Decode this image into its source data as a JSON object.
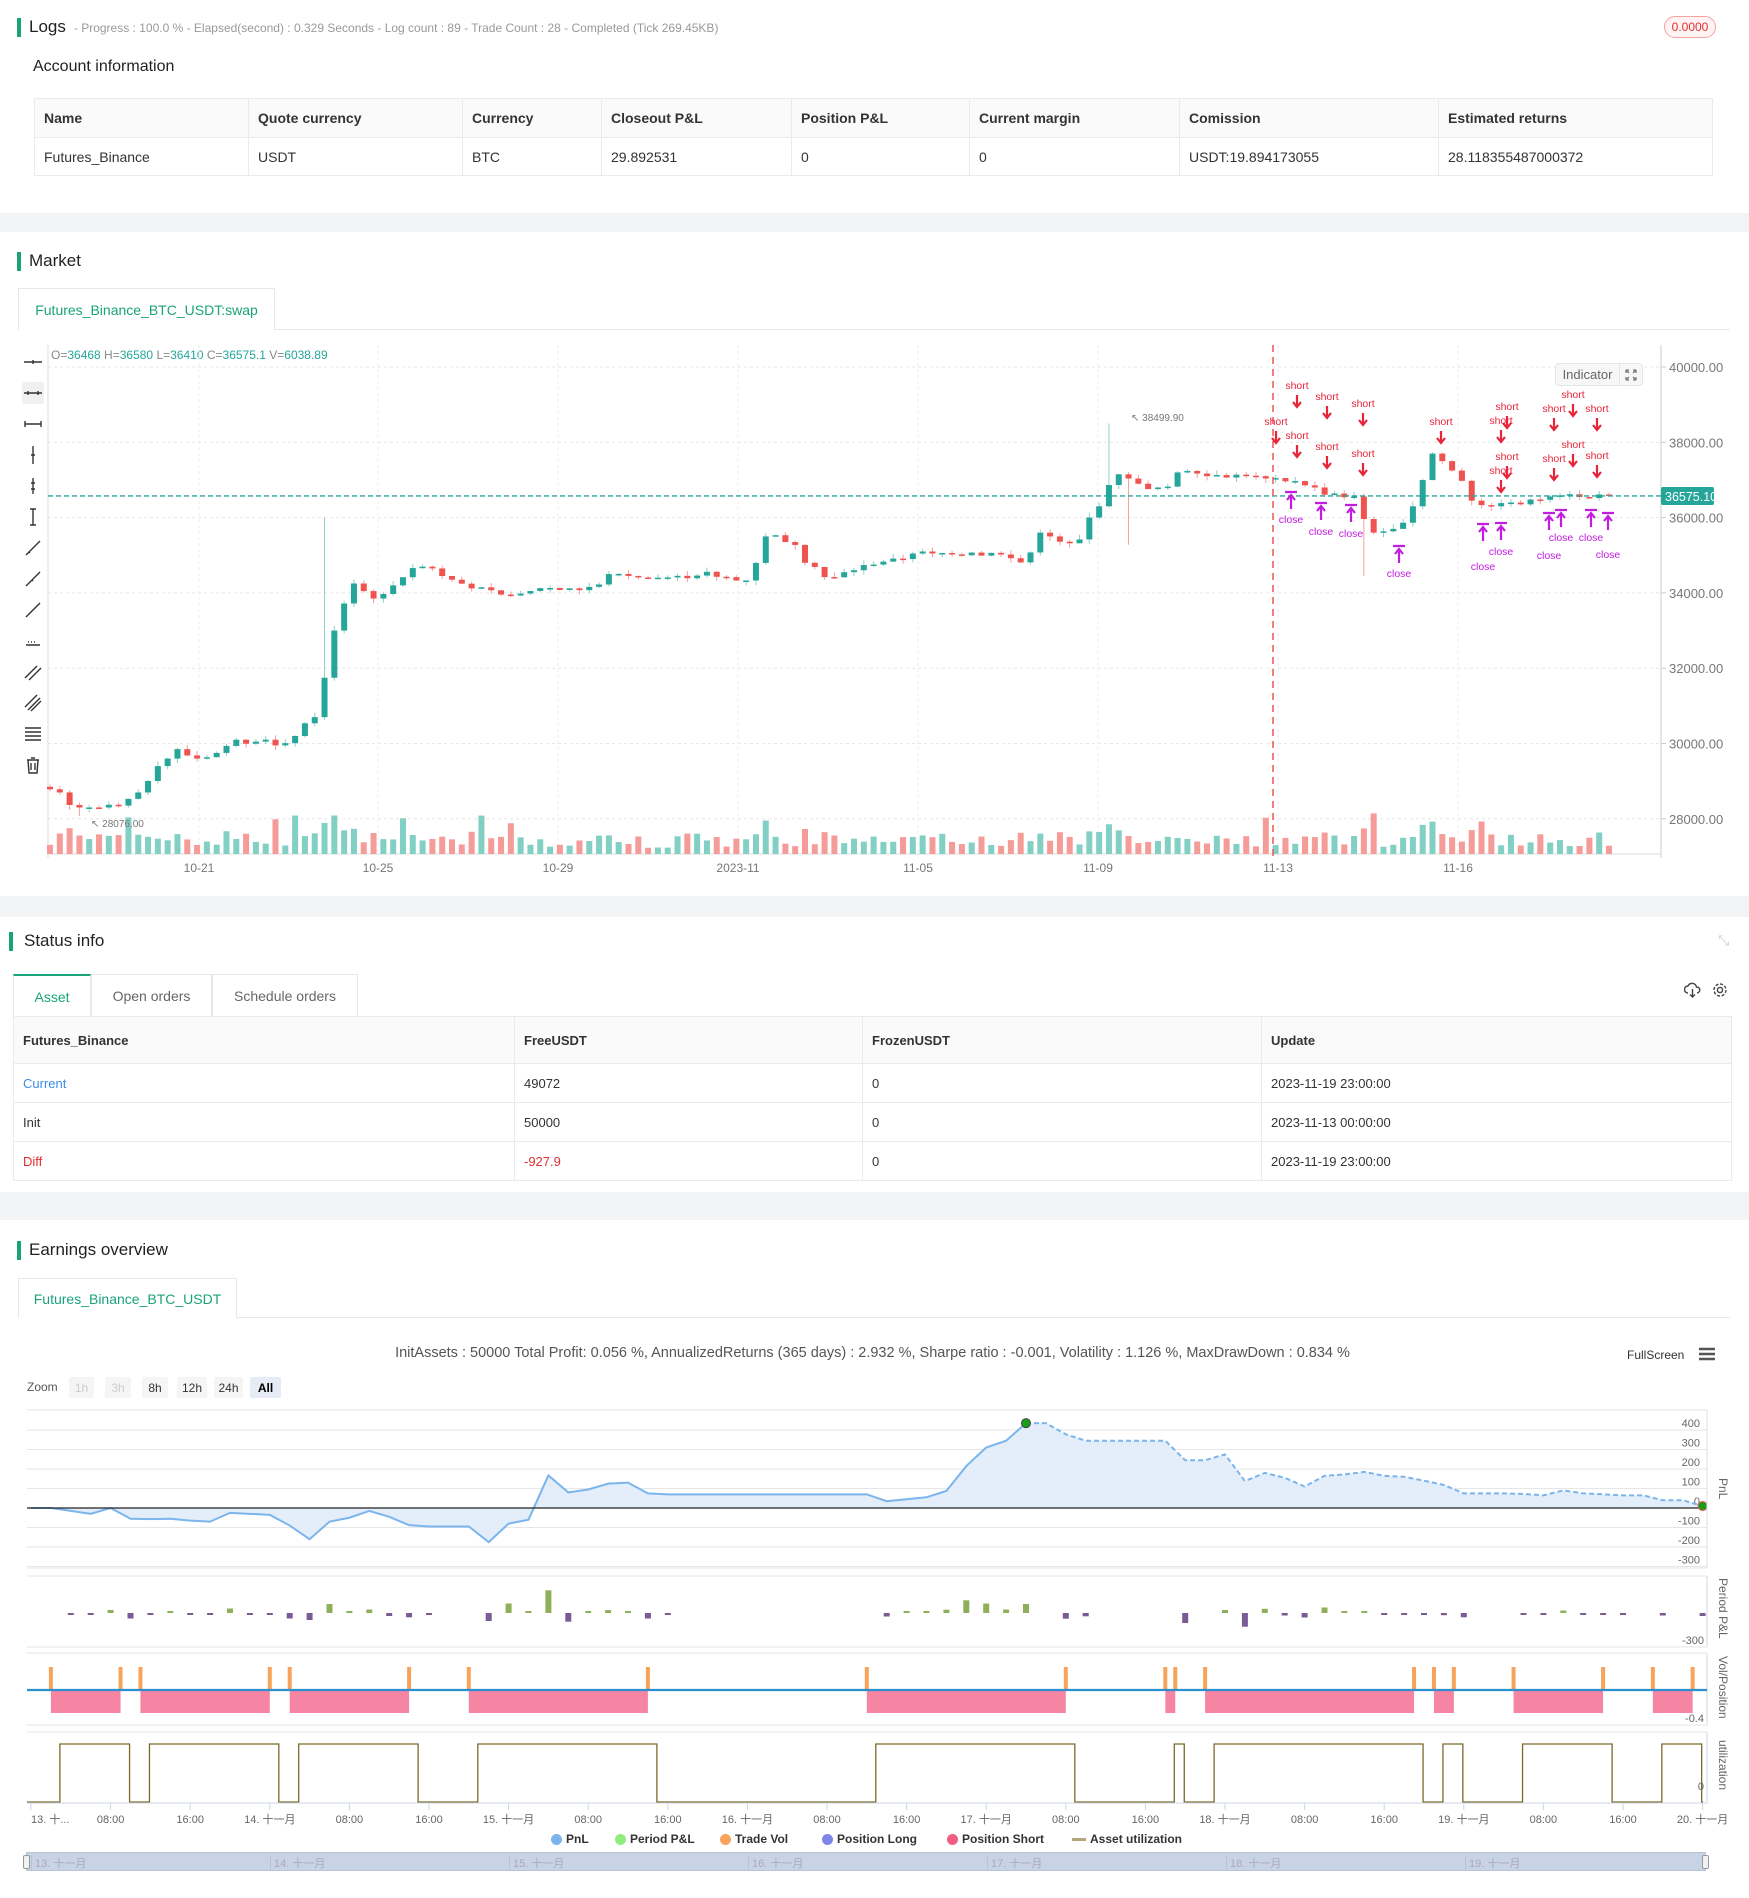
{
  "logs": {
    "title": "Logs",
    "summary": "- Progress : 100.0 % - Elapsed(second) : 0.329  Seconds - Log count : 89 - Trade Count : 28 - Completed (Tick 269.45KB)",
    "badge": "0.0000"
  },
  "account": {
    "title": "Account information",
    "headers": [
      "Name",
      "Quote currency",
      "Currency",
      "Closeout P&L",
      "Position P&L",
      "Current margin",
      "Comission",
      "Estimated returns"
    ],
    "row": [
      "Futures_Binance",
      "USDT",
      "BTC",
      "29.892531",
      "0",
      "0",
      "USDT:19.894173055",
      "28.118355487000372"
    ]
  },
  "market": {
    "title": "Market",
    "tab": "Futures_Binance_BTC_USDT:swap",
    "ohlc": {
      "o_label": "O=",
      "o": "36468",
      "h_label": " H=",
      "h": "36580",
      "l_label": " L=",
      "l": "36410",
      "c_label": " C=",
      "c": "36575.1",
      "v_label": " V=",
      "v": "6038.89"
    },
    "indicator_button": "Indicator",
    "toolbar_icons": [
      "horizontal-ray-icon",
      "horizontal-line-icon",
      "horizontal-segment-icon",
      "vertical-line-icon",
      "vertical-ray-icon",
      "vertical-segment-icon",
      "trend-line-icon",
      "trend-ray-icon",
      "segment-icon",
      "price-range-icon",
      "parallel-channel-icon",
      "pitchfork-icon",
      "fib-levels-icon",
      "trash-icon"
    ],
    "colors": {
      "up": "#26a69a",
      "down": "#ef5350",
      "signal_short": "#e8243a",
      "signal_close": "#c21ce0",
      "last_price": "#26a69a"
    }
  },
  "chart_data": {
    "type": "candlestick",
    "price_axis": [
      "40000.00",
      "38000.00",
      "36000.00",
      "34000.00",
      "32000.00",
      "30000.00",
      "28000.00"
    ],
    "ylim": [
      28000,
      40000
    ],
    "date_axis": [
      "10-21",
      "10-25",
      "10-29",
      "2023-11",
      "11-05",
      "11-09",
      "11-13",
      "11-16"
    ],
    "close_path": [
      28700,
      28300,
      28300,
      28350,
      28700,
      29400,
      29850,
      29600,
      29750,
      30100,
      30050,
      29950,
      30200,
      30700,
      33000,
      34250,
      33850,
      34200,
      34660,
      34650,
      34350,
      34120,
      34070,
      33930,
      34050,
      34130,
      34120,
      34160,
      34500,
      34450,
      34400,
      34410,
      34390,
      34560,
      34420,
      34330,
      35500,
      35350,
      34800,
      34420,
      34550,
      34740,
      34830,
      34900,
      35100,
      35060,
      35000,
      34990,
      35020,
      34810,
      35600,
      35360,
      35420,
      36300,
      37150,
      36900,
      36800,
      37200,
      37170,
      37130,
      37140,
      37100,
      37050,
      36970,
      36800,
      36640,
      36560,
      35600,
      35700,
      36300,
      37700,
      37250,
      36450,
      36300,
      36400,
      36480,
      36560,
      36620,
      36520,
      36575
    ],
    "last_price": "36575.10",
    "high_annotation": "38499.90",
    "low_annotation": "28076.00",
    "short_label": "short",
    "close_label": "close"
  },
  "status": {
    "title": "Status info",
    "tabs": [
      "Asset",
      "Open orders",
      "Schedule orders"
    ],
    "headers": [
      "Futures_Binance",
      "FreeUSDT",
      "FrozenUSDT",
      "Update"
    ],
    "rows": [
      [
        "Current",
        "49072",
        "0",
        "2023-11-19 23:00:00"
      ],
      [
        "Init",
        "50000",
        "0",
        "2023-11-13 00:00:00"
      ],
      [
        "Diff",
        "-927.9",
        "0",
        "2023-11-19 23:00:00"
      ]
    ]
  },
  "earnings": {
    "title": "Earnings overview",
    "tab": "Futures_Binance_BTC_USDT",
    "stats": "InitAssets : 50000 Total Profit: 0.056 %, AnnualizedReturns (365 days) : 2.932 %, Sharpe ratio : -0.001, Volatility : 1.126 %, MaxDrawDown : 0.834 %",
    "fullscreen": "FullScreen",
    "zoom_label": "Zoom",
    "zoom_buttons": [
      "1h",
      "3h",
      "8h",
      "12h",
      "24h",
      "All"
    ],
    "zoom_selected": "All",
    "pnl_axis": [
      "400",
      "300",
      "200",
      "100",
      "0",
      "-100",
      "-200",
      "-300"
    ],
    "period_axis": "-300",
    "vol_axis": "-0.4",
    "util_axis": "0",
    "axis_titles": [
      "PnL",
      "Period P&L",
      "Vol/Position",
      "utilization"
    ],
    "time_axis": [
      "13. 十...",
      "08:00",
      "16:00",
      "14. 十一月",
      "08:00",
      "16:00",
      "15. 十一月",
      "08:00",
      "16:00",
      "16. 十一月",
      "08:00",
      "16:00",
      "17. 十一月",
      "08:00",
      "16:00",
      "18. 十一月",
      "08:00",
      "16:00",
      "19. 十一月",
      "08:00",
      "16:00",
      "20. 十一月"
    ],
    "navigator_labels": [
      "13. 十一月",
      "14. 十一月",
      "15. 十一月",
      "16. 十一月",
      "17. 十一月",
      "18. 十一月",
      "19. 十一月"
    ],
    "legend": [
      {
        "label": "PnL",
        "color": "#7cb5ec"
      },
      {
        "label": "Period P&L",
        "color": "#90ed7d"
      },
      {
        "label": "Trade Vol",
        "color": "#f7a35c"
      },
      {
        "label": "Position Long",
        "color": "#8085e9"
      },
      {
        "label": "Position Short",
        "color": "#f15c80"
      },
      {
        "label": "Asset utilization",
        "color": "#b5a67a"
      }
    ],
    "pnl_start": "2023-11-13 00:00",
    "pnl_step": "2h",
    "pnl": [
      0,
      0,
      -15,
      -30,
      0,
      -55,
      -57,
      -55,
      -65,
      -70,
      -25,
      -30,
      -35,
      -90,
      -160,
      -70,
      -50,
      -15,
      -45,
      -88,
      -95,
      -95,
      -95,
      -175,
      -80,
      -60,
      167,
      80,
      95,
      125,
      130,
      75,
      70,
      70,
      70,
      70,
      70,
      70,
      70,
      70,
      70,
      70,
      70,
      35,
      45,
      55,
      88,
      215,
      310,
      345,
      435,
      435,
      378,
      345,
      345,
      345,
      345,
      345,
      245,
      245,
      275,
      138,
      180,
      155,
      110,
      165,
      172,
      185,
      165,
      160,
      140,
      118,
      75,
      75,
      75,
      72,
      65,
      90,
      75,
      70,
      65,
      65,
      40,
      40,
      10
    ],
    "short_positions": [
      [
        "11-13 02:00",
        "11-13 09:00"
      ],
      [
        "11-13 11:00",
        "11-14 00:00"
      ],
      [
        "11-14 02:00",
        "11-14 14:00"
      ],
      [
        "11-14 20:00",
        "11-15 14:00"
      ],
      [
        "11-16 12:00",
        "11-17 08:00"
      ],
      [
        "11-17 18:00",
        "11-17 19:00"
      ],
      [
        "11-17 22:00",
        "11-18 19:00"
      ],
      [
        "11-18 21:00",
        "11-18 23:00"
      ],
      [
        "11-19 05:00",
        "11-19 14:00"
      ],
      [
        "11-19 19:00",
        "11-19 23:00"
      ]
    ]
  }
}
